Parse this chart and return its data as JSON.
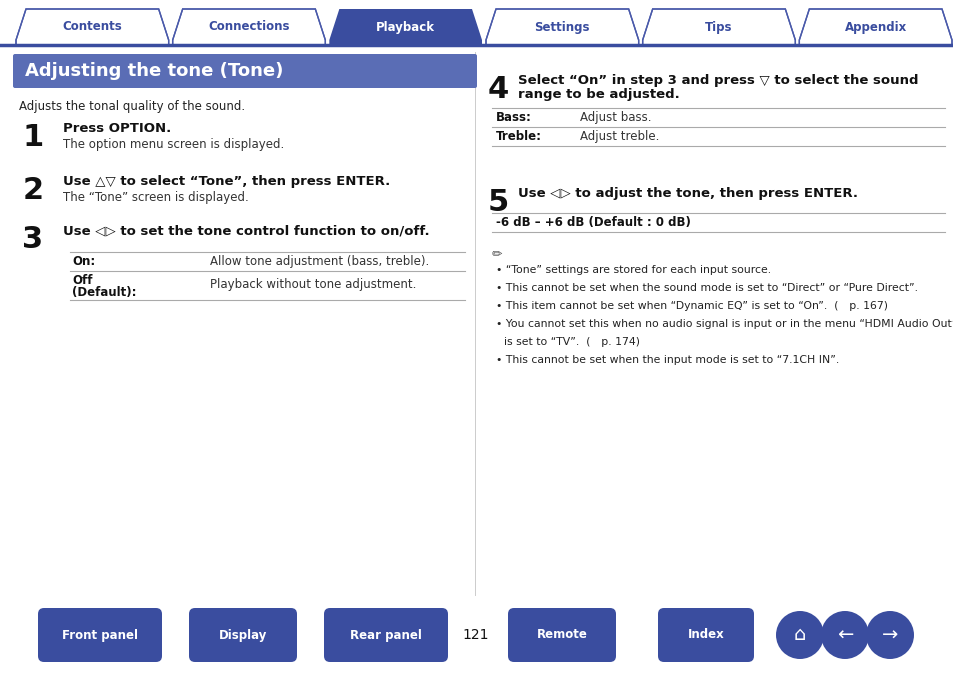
{
  "bg_color": "#ffffff",
  "page_number": "121",
  "tab_labels": [
    "Contents",
    "Connections",
    "Playback",
    "Settings",
    "Tips",
    "Appendix"
  ],
  "tab_active_index": 2,
  "tab_active_bg": "#3a4d9f",
  "tab_inactive_bg": "#ffffff",
  "tab_border_color": "#4a5aaa",
  "tab_text_color_active": "#ffffff",
  "tab_text_color_inactive": "#3a4d9f",
  "tab_line_color": "#3a4d9f",
  "header_bg": "#5a6db5",
  "header_text": "Adjusting the tone (Tone)",
  "header_text_color": "#ffffff",
  "subtitle": "Adjusts the tonal quality of the sound.",
  "step1_num": "1",
  "step1_title": "Press OPTION.",
  "step1_desc": "The option menu screen is displayed.",
  "step2_num": "2",
  "step2_title": "Use △▽ to select “Tone”, then press ENTER.",
  "step2_desc": "The “Tone” screen is displayed.",
  "step3_num": "3",
  "step3_title": "Use ◁▷ to set the tone control function to on/off.",
  "step3_row1_label": "On:",
  "step3_row1_val": "Allow tone adjustment (bass, treble).",
  "step3_row2_label_a": "Off",
  "step3_row2_label_b": "(Default):",
  "step3_row2_val": "Playback without tone adjustment.",
  "step4_num": "4",
  "step4_title_a": "Select “On” in step 3 and press ▽ to select the sound",
  "step4_title_b": "range to be adjusted.",
  "step4_row1_label": "Bass:",
  "step4_row1_val": "Adjust bass.",
  "step4_row2_label": "Treble:",
  "step4_row2_val": "Adjust treble.",
  "step5_num": "5",
  "step5_title": "Use ◁▷ to adjust the tone, then press ENTER.",
  "step5_range": "-6 dB – +6 dB (Default : 0 dB)",
  "note1": "“Tone” settings are stored for each input source.",
  "note2": "This cannot be set when the sound mode is set to “Direct” or “Pure Direct”.",
  "note3": "This item cannot be set when “Dynamic EQ” is set to “On”.  ( p. 167)",
  "note4a": "You cannot set this when no audio signal is input or in the menu “HDMI Audio Out”",
  "note4b": "is set to “TV”.  ( p. 174)",
  "note5": "This cannot be set when the input mode is set to “7.1CH IN”.",
  "bottom_buttons": [
    "Front panel",
    "Display",
    "Rear panel",
    "Remote",
    "Index"
  ],
  "bottom_btn_color": "#3a4d9f",
  "bottom_btn_text_color": "#ffffff",
  "table_line_color": "#aaaaaa"
}
